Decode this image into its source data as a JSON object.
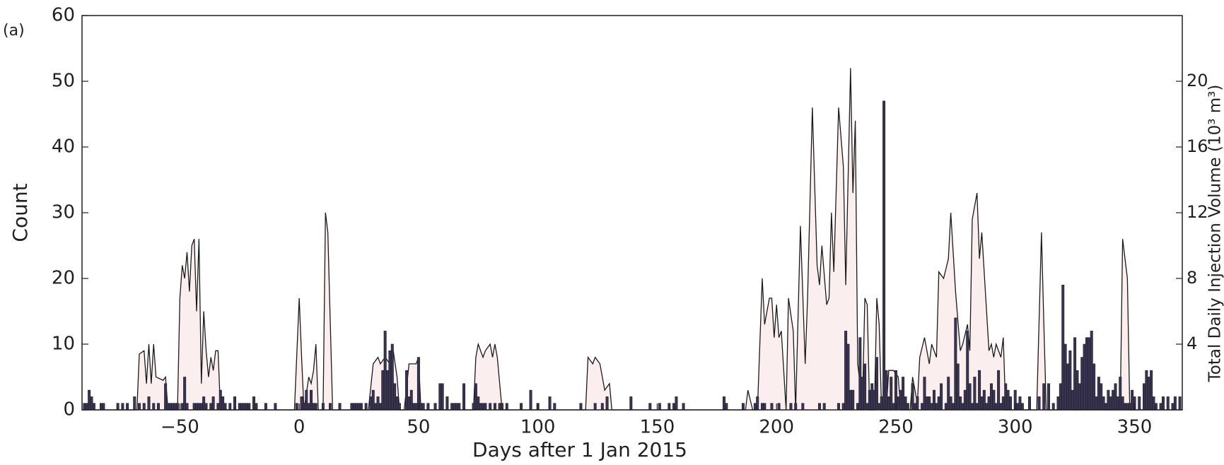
{
  "chart_data": {
    "type": "combo",
    "annotation": "(a)",
    "x_label": "Days after 1 Jan 2015",
    "y_label": "Count",
    "y2_label": "Total Daily Injection Volume (10³ m³)",
    "xlim": [
      -91,
      370
    ],
    "xticks": [
      {
        "value": -50,
        "label": "−50"
      },
      0,
      50,
      100,
      150,
      200,
      250,
      300,
      350
    ],
    "ylim": [
      0,
      60
    ],
    "yticks": [
      0,
      10,
      20,
      30,
      40,
      50,
      60
    ],
    "y2lim": [
      0,
      24
    ],
    "y2ticks": [
      4,
      8,
      12,
      16,
      20
    ],
    "series": [
      {
        "type": "area",
        "axis": "y2",
        "color": "#fbeeee",
        "line_color": "#1a1a1a",
        "x": [
          -91,
          -68,
          -67,
          -65,
          -64,
          -63,
          -62,
          -61,
          -60,
          -57,
          -56,
          -55,
          -51,
          -50,
          -49,
          -48,
          -47,
          -46,
          -45,
          -44,
          -43,
          -42,
          -41,
          -40,
          -39,
          -38,
          -37,
          -36,
          -35,
          -34,
          -33,
          -2,
          0,
          1,
          2,
          4,
          5,
          6,
          7,
          8,
          10,
          11,
          12,
          14,
          29,
          31,
          33,
          34,
          36,
          38,
          39,
          41,
          42,
          44,
          46,
          49,
          50,
          51,
          73,
          74,
          75,
          77,
          78,
          80,
          81,
          82,
          83,
          85,
          120,
          121,
          123,
          124,
          126,
          128,
          130,
          131,
          187,
          188,
          190,
          192,
          194,
          195,
          197,
          198,
          199,
          200,
          201,
          202,
          204,
          205,
          207,
          208,
          210,
          212,
          213,
          215,
          217,
          218,
          219,
          221,
          222,
          223,
          224,
          226,
          228,
          229,
          231,
          232,
          233,
          234,
          236,
          237,
          238,
          239,
          241,
          242,
          243,
          244,
          246,
          247,
          249,
          251,
          252,
          256,
          257,
          259,
          260,
          262,
          264,
          265,
          267,
          268,
          270,
          272,
          273,
          275,
          277,
          278,
          280,
          281,
          282,
          284,
          285,
          286,
          289,
          290,
          291,
          292,
          294,
          295,
          296,
          309,
          311,
          312,
          313,
          344,
          345,
          347,
          348,
          370
        ],
        "values": [
          0,
          0,
          3.4,
          3.6,
          1.6,
          4.0,
          1.6,
          4.0,
          2.0,
          1.8,
          2.0,
          0,
          0,
          6.8,
          8.8,
          8.0,
          9.6,
          7.2,
          10.0,
          10.4,
          6.0,
          10.4,
          1.6,
          6.0,
          3.6,
          2.0,
          3.2,
          2.4,
          3.6,
          3.6,
          0,
          0,
          6.8,
          3.2,
          0,
          2.0,
          1.6,
          2.4,
          4.0,
          0,
          0,
          12.0,
          10.8,
          0,
          0,
          2.8,
          3.2,
          2.8,
          3.2,
          2.8,
          4.0,
          2.0,
          0,
          0,
          2.8,
          2.8,
          3.2,
          0,
          0,
          3.2,
          4.0,
          3.2,
          3.6,
          4.0,
          3.2,
          4.0,
          3.2,
          0,
          0,
          3.2,
          2.8,
          3.2,
          2.8,
          1.2,
          1.6,
          0,
          0,
          1.2,
          0,
          0,
          8.0,
          5.2,
          6.8,
          6.8,
          4.4,
          6.4,
          4.4,
          4.8,
          0,
          6.8,
          4.8,
          0,
          11.2,
          2.8,
          6.8,
          18.4,
          8.8,
          7.6,
          10.0,
          6.4,
          6.8,
          12.0,
          8.4,
          18.4,
          14.8,
          7.6,
          20.8,
          13.2,
          17.6,
          2.8,
          0.4,
          6.8,
          6.4,
          0,
          0,
          6.8,
          5.2,
          0,
          0,
          2.4,
          2.4,
          2.0,
          0,
          0,
          2.0,
          0.4,
          3.2,
          4.4,
          2.8,
          4.0,
          3.2,
          8.4,
          8.0,
          9.2,
          12.0,
          7.2,
          3.6,
          4.0,
          5.2,
          3.6,
          11.6,
          13.2,
          9.2,
          10.8,
          3.6,
          4.0,
          3.2,
          4.0,
          3.2,
          4.4,
          0,
          0,
          10.8,
          5.2,
          0,
          0,
          10.4,
          8.0,
          0,
          0
        ]
      },
      {
        "type": "bar",
        "color": "#393550",
        "x": [
          -90,
          -89,
          -88,
          -87,
          -86,
          -83,
          -82,
          -76,
          -74,
          -72,
          -69,
          -67,
          -65,
          -63,
          -61,
          -59,
          -56,
          -55,
          -54,
          -53,
          -52,
          -51,
          -49,
          -48,
          -47,
          -44,
          -43,
          -42,
          -41,
          -40,
          -39,
          -37,
          -36,
          -34,
          -33,
          -32,
          -31,
          -29,
          -27,
          -25,
          -24,
          -23,
          -22,
          -21,
          -19,
          -18,
          -14,
          -10,
          -1,
          1,
          2,
          3,
          4,
          5,
          6,
          7,
          10,
          13,
          17,
          22,
          23,
          24,
          25,
          26,
          28,
          30,
          31,
          32,
          33,
          34,
          35,
          36,
          37,
          38,
          39,
          40,
          41,
          42,
          45,
          46,
          47,
          48,
          49,
          50,
          51,
          52,
          54,
          57,
          59,
          60,
          62,
          64,
          65,
          66,
          67,
          69,
          73,
          74,
          75,
          76,
          77,
          78,
          80,
          82,
          84,
          85,
          87,
          93,
          97,
          100,
          105,
          107,
          118,
          124,
          127,
          129,
          139,
          147,
          151,
          155,
          157,
          158,
          161,
          178,
          179,
          186,
          191,
          192,
          194,
          195,
          198,
          201,
          206,
          208,
          211,
          218,
          220,
          226,
          228,
          229,
          230,
          231,
          232,
          234,
          235,
          236,
          237,
          238,
          239,
          240,
          241,
          242,
          243,
          244,
          245,
          246,
          247,
          248,
          249,
          250,
          251,
          252,
          253,
          254,
          255,
          257,
          258,
          259,
          261,
          262,
          263,
          264,
          265,
          266,
          267,
          268,
          269,
          271,
          272,
          273,
          274,
          275,
          276,
          277,
          278,
          279,
          280,
          281,
          282,
          283,
          284,
          285,
          286,
          287,
          288,
          289,
          290,
          291,
          292,
          293,
          294,
          295,
          296,
          297,
          298,
          300,
          301,
          302,
          303,
          306,
          310,
          312,
          314,
          316,
          318,
          319,
          320,
          321,
          322,
          323,
          324,
          325,
          326,
          327,
          328,
          329,
          330,
          331,
          332,
          333,
          334,
          335,
          336,
          337,
          338,
          339,
          340,
          341,
          342,
          343,
          344,
          345,
          346,
          347,
          348,
          349,
          350,
          352,
          354,
          355,
          356,
          357,
          358,
          359,
          361,
          362,
          364,
          366,
          367,
          369
        ],
        "values": [
          1,
          1,
          3,
          2,
          1,
          1,
          1,
          1,
          1,
          1,
          2,
          1,
          1,
          2,
          1,
          1,
          4,
          1,
          1,
          1,
          1,
          1,
          1,
          5,
          1,
          1,
          1,
          1,
          1,
          2,
          1,
          1,
          2,
          1,
          3,
          2,
          1,
          1,
          2,
          1,
          1,
          1,
          1,
          1,
          2,
          1,
          1,
          1,
          1,
          2,
          1,
          3,
          1,
          3,
          1,
          1,
          1,
          1,
          1,
          1,
          1,
          1,
          1,
          1,
          1,
          2,
          3,
          1,
          2,
          1,
          6,
          12,
          6,
          9,
          10,
          4,
          2,
          1,
          6,
          2,
          3,
          1,
          1,
          8,
          1,
          1,
          1,
          1,
          4,
          4,
          2,
          1,
          1,
          1,
          1,
          4,
          1,
          4,
          2,
          1,
          1,
          1,
          1,
          1,
          1,
          1,
          1,
          1,
          3,
          1,
          2,
          1,
          1,
          1,
          1,
          2,
          2,
          1,
          1,
          1,
          1,
          2,
          1,
          2,
          1,
          1,
          1,
          2,
          1,
          1,
          1,
          1,
          1,
          1,
          1,
          1,
          1,
          1,
          1,
          12,
          10,
          3,
          3,
          1,
          11,
          5,
          7,
          1,
          3,
          4,
          3,
          8,
          1,
          2,
          47,
          6,
          2,
          5,
          1,
          6,
          2,
          3,
          5,
          2,
          1,
          4,
          1,
          2,
          1,
          5,
          2,
          2,
          1,
          3,
          1,
          2,
          4,
          1,
          5,
          2,
          1,
          14,
          7,
          2,
          1,
          3,
          12,
          4,
          1,
          5,
          1,
          6,
          2,
          3,
          1,
          2,
          4,
          3,
          1,
          6,
          1,
          2,
          4,
          3,
          2,
          3,
          1,
          2,
          1,
          2,
          2,
          4,
          4,
          1,
          2,
          4,
          19,
          10,
          7,
          9,
          3,
          11,
          6,
          4,
          8,
          10,
          11,
          11,
          12,
          7,
          2,
          5,
          4,
          2,
          1,
          3,
          2,
          3,
          4,
          2,
          5,
          2,
          1,
          1,
          1,
          3,
          2,
          2,
          4,
          6,
          5,
          6,
          2,
          1,
          1,
          2,
          2,
          1,
          2,
          2
        ]
      }
    ]
  }
}
